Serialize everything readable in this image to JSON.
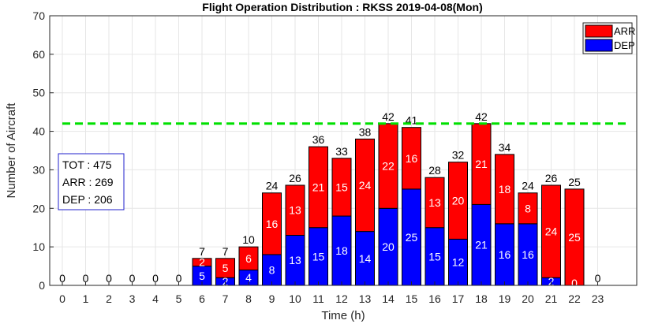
{
  "chart_data": {
    "type": "bar",
    "stacked": true,
    "title": "Flight Operation Distribution : RKSS 2019-04-08(Mon)",
    "xlabel": "Time (h)",
    "ylabel": "Number of Aircraft",
    "ylim": [
      0,
      70
    ],
    "yticks": [
      0,
      10,
      20,
      30,
      40,
      50,
      60,
      70
    ],
    "grid": true,
    "categories": [
      "0",
      "1",
      "2",
      "3",
      "4",
      "5",
      "6",
      "7",
      "8",
      "9",
      "10",
      "11",
      "12",
      "13",
      "14",
      "15",
      "16",
      "17",
      "18",
      "19",
      "20",
      "21",
      "22",
      "23"
    ],
    "series": [
      {
        "name": "DEP",
        "color": "#0000ff",
        "values": [
          0,
          0,
          0,
          0,
          0,
          0,
          5,
          2,
          4,
          8,
          13,
          15,
          18,
          14,
          20,
          25,
          15,
          12,
          21,
          16,
          16,
          2,
          0,
          0
        ]
      },
      {
        "name": "ARR",
        "color": "#ff0000",
        "values": [
          0,
          0,
          0,
          0,
          0,
          0,
          2,
          5,
          6,
          16,
          13,
          21,
          15,
          24,
          22,
          16,
          13,
          20,
          21,
          18,
          8,
          24,
          25,
          0
        ]
      }
    ],
    "totals": [
      0,
      0,
      0,
      0,
      0,
      0,
      7,
      7,
      10,
      24,
      26,
      36,
      33,
      38,
      42,
      41,
      28,
      32,
      42,
      34,
      24,
      26,
      25,
      0
    ],
    "reference_line": {
      "value": 42,
      "color": "#00e000",
      "style": "dashed"
    },
    "legend": {
      "placement": "top-right",
      "entries": [
        "ARR",
        "DEP"
      ]
    },
    "stats": {
      "tot_label": "TOT : 475",
      "arr_label": "ARR : 269",
      "dep_label": "DEP : 206"
    }
  }
}
